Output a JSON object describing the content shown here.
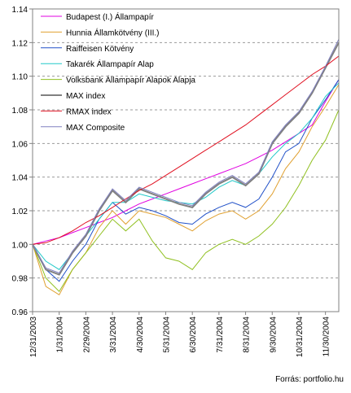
{
  "chart_data": {
    "type": "line",
    "title": "",
    "xlabel": "",
    "ylabel": "",
    "ylim": [
      0.96,
      1.14
    ],
    "yticks": [
      "0.96",
      "0.98",
      "1.00",
      "1.02",
      "1.04",
      "1.06",
      "1.08",
      "1.10",
      "1.12",
      "1.14"
    ],
    "xticks": [
      "12/31/2003",
      "1/31/2004",
      "2/29/2004",
      "3/31/2004",
      "4/30/2004",
      "5/31/2004",
      "6/30/2004",
      "7/31/2004",
      "8/31/2004",
      "9/30/2004",
      "10/31/2004",
      "11/30/2004"
    ],
    "grid": "horizontal dashed",
    "legend_position": "top-left",
    "source": "Forrás: portfolio.hu",
    "x_month_index": [
      0,
      0.5,
      1,
      1.5,
      2,
      2.5,
      3,
      3.5,
      4,
      4.5,
      5,
      5.5,
      6,
      6.5,
      7,
      7.5,
      8,
      8.5,
      9,
      9.5,
      10,
      10.5,
      11,
      11.5
    ],
    "series": [
      {
        "name": "Budapest (I.) Állampapír",
        "color": "#e000e0",
        "values": [
          1.0,
          1.002,
          1.004,
          1.007,
          1.01,
          1.013,
          1.016,
          1.02,
          1.024,
          1.027,
          1.03,
          1.033,
          1.036,
          1.039,
          1.042,
          1.045,
          1.048,
          1.052,
          1.056,
          1.061,
          1.066,
          1.071,
          1.085,
          1.098
        ]
      },
      {
        "name": "Hunnia Államkötvény (III.)",
        "color": "#e0a030",
        "values": [
          1.0,
          0.975,
          0.97,
          0.985,
          0.995,
          1.01,
          1.02,
          1.012,
          1.02,
          1.018,
          1.016,
          1.012,
          1.008,
          1.014,
          1.018,
          1.02,
          1.015,
          1.02,
          1.03,
          1.045,
          1.055,
          1.07,
          1.082,
          1.095
        ]
      },
      {
        "name": "Raiffeisen Kötvény",
        "color": "#2050c8",
        "values": [
          1.0,
          0.985,
          0.978,
          0.99,
          1.0,
          1.015,
          1.025,
          1.018,
          1.022,
          1.02,
          1.017,
          1.013,
          1.012,
          1.018,
          1.022,
          1.025,
          1.022,
          1.027,
          1.04,
          1.055,
          1.06,
          1.075,
          1.086,
          1.098
        ]
      },
      {
        "name": "Takarék Állampapír Alap",
        "color": "#20c8c8",
        "values": [
          1.0,
          0.99,
          0.985,
          0.995,
          1.005,
          1.015,
          1.025,
          1.025,
          1.03,
          1.028,
          1.026,
          1.025,
          1.024,
          1.028,
          1.034,
          1.038,
          1.035,
          1.042,
          1.052,
          1.06,
          1.066,
          1.075,
          1.088,
          1.096
        ]
      },
      {
        "name": "Volksbank Állampapír Alapok Alapja",
        "color": "#90c020",
        "values": [
          1.0,
          0.98,
          0.972,
          0.985,
          0.995,
          1.005,
          1.015,
          1.008,
          1.015,
          1.002,
          0.992,
          0.99,
          0.985,
          0.995,
          1.0,
          1.003,
          1.0,
          1.005,
          1.012,
          1.022,
          1.035,
          1.05,
          1.062,
          1.08
        ]
      },
      {
        "name": "MAX index",
        "color": "#808080",
        "values": [
          1.0,
          0.985,
          0.982,
          0.995,
          1.005,
          1.02,
          1.032,
          1.025,
          1.033,
          1.03,
          1.027,
          1.024,
          1.022,
          1.03,
          1.036,
          1.04,
          1.035,
          1.042,
          1.06,
          1.07,
          1.078,
          1.09,
          1.105,
          1.12
        ]
      },
      {
        "name": "RMAX index",
        "color": "#e01020",
        "values": [
          1.0,
          1.001,
          1.004,
          1.008,
          1.013,
          1.017,
          1.022,
          1.027,
          1.032,
          1.036,
          1.041,
          1.046,
          1.051,
          1.056,
          1.061,
          1.066,
          1.071,
          1.077,
          1.083,
          1.089,
          1.095,
          1.101,
          1.106,
          1.112
        ]
      },
      {
        "name": "MAX Composite",
        "color": "#8080c0",
        "values": [
          1.0,
          0.986,
          0.983,
          0.996,
          1.006,
          1.021,
          1.033,
          1.026,
          1.034,
          1.031,
          1.028,
          1.025,
          1.023,
          1.031,
          1.037,
          1.041,
          1.036,
          1.043,
          1.061,
          1.071,
          1.079,
          1.091,
          1.106,
          1.122
        ]
      }
    ]
  }
}
